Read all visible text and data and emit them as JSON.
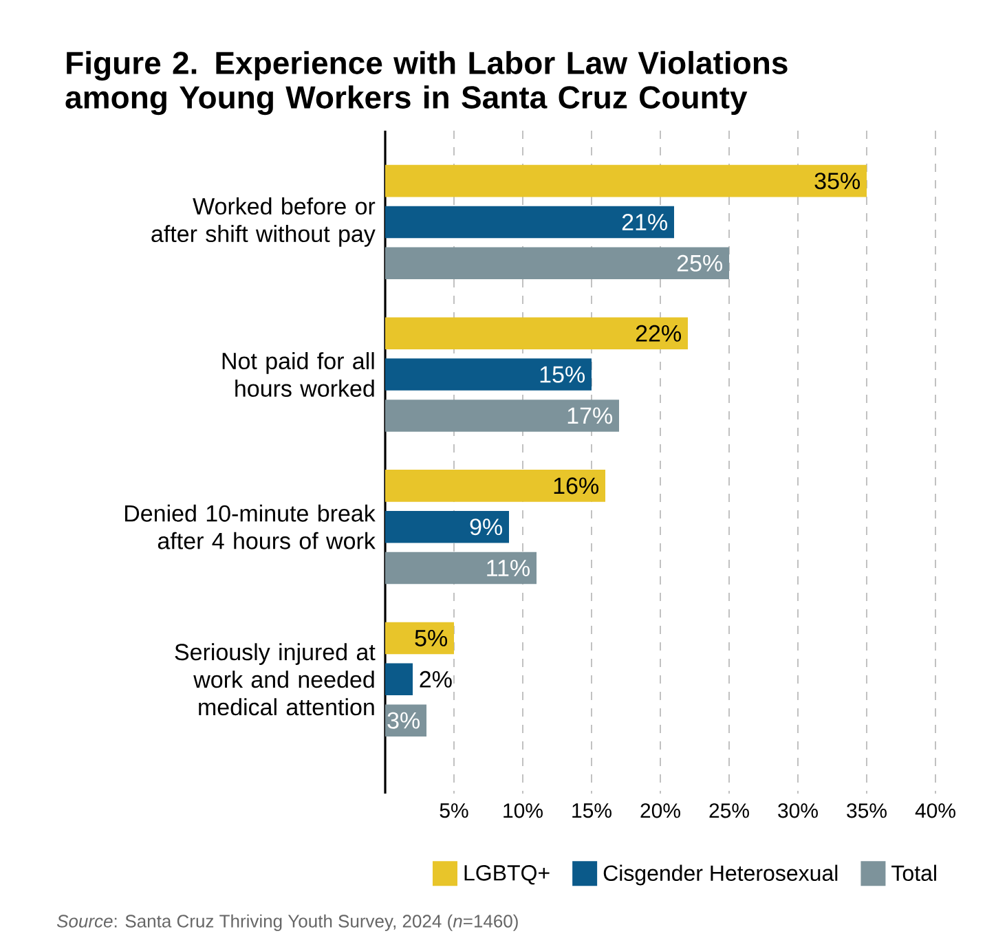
{
  "chart_data": {
    "type": "bar",
    "orientation": "horizontal",
    "title": "Figure 2. Experience with Labor Law Violations among Young Workers in Santa Cruz County",
    "categories": [
      "Worked before or after shift without pay",
      "Not paid for all hours worked",
      "Denied 10-minute break after 4 hours of work",
      "Seriously injured at work and needed medical attention"
    ],
    "series": [
      {
        "name": "LGBTQ+",
        "color": "#e8c52a",
        "values": [
          35,
          22,
          16,
          5
        ],
        "value_labels": [
          "35%",
          "22%",
          "16%",
          "5%"
        ]
      },
      {
        "name": "Cisgender Heterosexual",
        "color": "#0b5a8a",
        "values": [
          21,
          15,
          9,
          2
        ],
        "value_labels": [
          "21%",
          "15%",
          "9%",
          "2%"
        ]
      },
      {
        "name": "Total",
        "color": "#7d939b",
        "values": [
          25,
          17,
          11,
          3
        ],
        "value_labels": [
          "25%",
          "17%",
          "11%",
          "3%"
        ]
      }
    ],
    "xlim": [
      0,
      40
    ],
    "xticks": [
      {
        "value": 5,
        "label": "5%"
      },
      {
        "value": 10,
        "label": "10%"
      },
      {
        "value": 15,
        "label": "15%"
      },
      {
        "value": 20,
        "label": "20%"
      },
      {
        "value": 25,
        "label": "25%"
      },
      {
        "value": 30,
        "label": "30%"
      },
      {
        "value": 35,
        "label": "35%"
      },
      {
        "value": 40,
        "label": "40%"
      }
    ],
    "grid": "x",
    "legend": "bottom",
    "annotations": [
      "*Source*: Santa Cruz Thriving Youth Survey, 2024 (*n*=1460)"
    ]
  }
}
